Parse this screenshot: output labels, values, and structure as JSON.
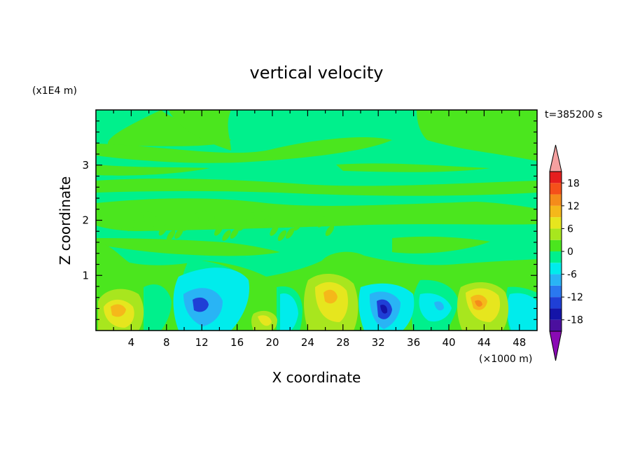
{
  "chart_data": {
    "type": "heatmap",
    "subtype": "filled-contour",
    "title": "vertical velocity",
    "xlabel": "X coordinate",
    "ylabel": "Z coordinate",
    "x_unit": "(×1000 m)",
    "y_unit": "(x1E4 m)",
    "time_label": "t=385200 s",
    "xlim": [
      0,
      50
    ],
    "ylim": [
      0,
      4
    ],
    "x_ticks": [
      4,
      8,
      12,
      16,
      20,
      24,
      28,
      32,
      36,
      40,
      44,
      48
    ],
    "y_ticks": [
      1,
      2,
      3
    ],
    "colorbar": {
      "tick_labels": [
        "18",
        "12",
        "6",
        "0",
        "-6",
        "-12",
        "-18"
      ],
      "levels": [
        -21,
        -18,
        -15,
        -12,
        -9,
        -6,
        -3,
        0,
        3,
        6,
        9,
        12,
        15,
        18,
        21
      ],
      "colors_bottom_to_top": [
        "#8a0ab4",
        "#4b0f9e",
        "#1414a8",
        "#1f3fd6",
        "#2a78f0",
        "#29b4f5",
        "#00ecec",
        "#00f08c",
        "#4be61e",
        "#a8e61e",
        "#e6e61e",
        "#f5b81a",
        "#f58c1a",
        "#f5501a",
        "#e61e1e",
        "#f5a0a0"
      ]
    },
    "background_level_color": "#00f08c",
    "features": [
      {
        "x": 3,
        "z": 0.35,
        "value": 12,
        "sign": "updraft"
      },
      {
        "x": 11.5,
        "z": 0.45,
        "value": -12,
        "sign": "downdraft"
      },
      {
        "x": 19,
        "z": 0.15,
        "value": 9,
        "sign": "updraft"
      },
      {
        "x": 26.5,
        "z": 0.6,
        "value": 12,
        "sign": "updraft"
      },
      {
        "x": 32.5,
        "z": 0.35,
        "value": -15,
        "sign": "downdraft"
      },
      {
        "x": 43.5,
        "z": 0.45,
        "value": 15,
        "sign": "updraft"
      }
    ]
  }
}
